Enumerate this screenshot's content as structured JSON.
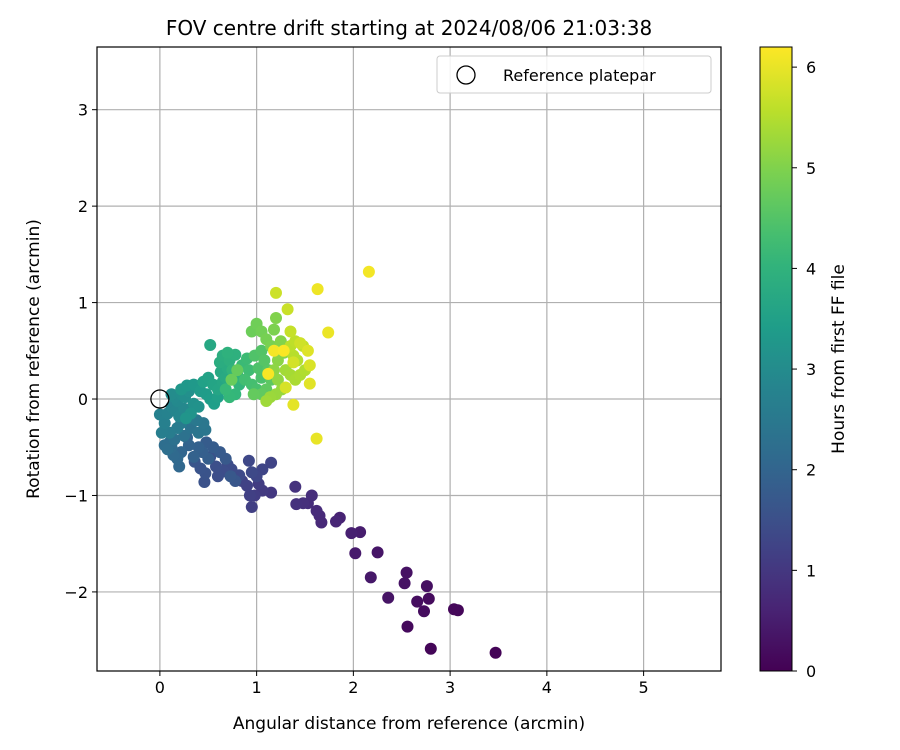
{
  "chart_data": {
    "type": "scatter",
    "title": "FOV centre drift starting at 2024/08/06 21:03:38",
    "xlabel": "Angular distance from reference (arcmin)",
    "ylabel": "Rotation from reference (arcmin)",
    "xlim": [
      -0.65,
      5.8
    ],
    "ylim": [
      -2.82,
      3.65
    ],
    "xticks": [
      0,
      1,
      2,
      3,
      4,
      5
    ],
    "yticks": [
      -2,
      -1,
      0,
      1,
      2,
      3
    ],
    "grid": true,
    "legend": {
      "position": "top-right",
      "entries": [
        "Reference platepar"
      ]
    },
    "reference": {
      "x": 0,
      "y": 0
    },
    "colorbar": {
      "label": "Hours from first FF file",
      "min": 0,
      "max": 6.2,
      "ticks": [
        0,
        1,
        2,
        3,
        4,
        5,
        6
      ],
      "colormap": "viridis"
    },
    "points": [
      [
        3.47,
        -2.63,
        0.05
      ],
      [
        2.8,
        -2.59,
        0.08
      ],
      [
        3.08,
        -2.19,
        0.1
      ],
      [
        3.04,
        -2.18,
        0.12
      ],
      [
        2.56,
        -2.36,
        0.15
      ],
      [
        2.78,
        -2.07,
        0.18
      ],
      [
        2.73,
        -2.2,
        0.2
      ],
      [
        2.66,
        -2.1,
        0.22
      ],
      [
        2.76,
        -1.94,
        0.25
      ],
      [
        2.55,
        -1.8,
        0.28
      ],
      [
        2.53,
        -1.91,
        0.3
      ],
      [
        2.36,
        -2.06,
        0.33
      ],
      [
        2.25,
        -1.59,
        0.36
      ],
      [
        2.18,
        -1.85,
        0.4
      ],
      [
        2.02,
        -1.6,
        0.45
      ],
      [
        2.07,
        -1.38,
        0.5
      ],
      [
        1.98,
        -1.39,
        0.55
      ],
      [
        1.86,
        -1.23,
        0.6
      ],
      [
        1.82,
        -1.27,
        0.65
      ],
      [
        1.67,
        -1.28,
        0.7
      ],
      [
        1.65,
        -1.21,
        0.72
      ],
      [
        1.62,
        -1.16,
        0.75
      ],
      [
        1.53,
        -1.08,
        0.8
      ],
      [
        1.57,
        -1.0,
        0.82
      ],
      [
        1.48,
        -1.08,
        0.85
      ],
      [
        1.41,
        -1.09,
        0.88
      ],
      [
        1.4,
        -0.91,
        0.9
      ],
      [
        1.15,
        -0.97,
        1.0
      ],
      [
        1.06,
        -0.95,
        1.05
      ],
      [
        1.02,
        -0.88,
        1.1
      ],
      [
        0.98,
        -1.0,
        1.12
      ],
      [
        0.95,
        -1.12,
        1.15
      ],
      [
        0.93,
        -1.0,
        1.18
      ],
      [
        0.9,
        -0.9,
        1.2
      ],
      [
        0.85,
        -0.85,
        1.22
      ],
      [
        1.15,
        -0.66,
        1.25
      ],
      [
        1.06,
        -0.73,
        1.28
      ],
      [
        1.0,
        -0.8,
        1.3
      ],
      [
        0.92,
        -0.64,
        1.33
      ],
      [
        0.95,
        -0.76,
        1.35
      ],
      [
        0.82,
        -0.79,
        1.38
      ],
      [
        0.74,
        -0.73,
        1.4
      ],
      [
        0.7,
        -0.68,
        1.42
      ],
      [
        0.66,
        -0.75,
        1.45
      ],
      [
        0.6,
        -0.8,
        1.48
      ],
      [
        0.58,
        -0.7,
        1.5
      ],
      [
        0.52,
        -0.6,
        1.53
      ],
      [
        0.46,
        -0.86,
        1.56
      ],
      [
        0.47,
        -0.77,
        1.58
      ],
      [
        0.42,
        -0.72,
        1.6
      ],
      [
        0.36,
        -0.65,
        1.63
      ],
      [
        0.78,
        -0.85,
        1.66
      ],
      [
        0.73,
        -0.8,
        1.7
      ],
      [
        0.68,
        -0.62,
        1.72
      ],
      [
        0.62,
        -0.55,
        1.75
      ],
      [
        0.55,
        -0.5,
        1.78
      ],
      [
        0.48,
        -0.45,
        1.8
      ],
      [
        0.5,
        -0.62,
        1.83
      ],
      [
        0.44,
        -0.55,
        1.86
      ],
      [
        0.4,
        -0.5,
        1.9
      ],
      [
        0.35,
        -0.6,
        1.93
      ],
      [
        0.3,
        -0.48,
        1.96
      ],
      [
        0.28,
        -0.4,
        2.0
      ],
      [
        0.22,
        -0.55,
        2.03
      ],
      [
        0.2,
        -0.7,
        2.06
      ],
      [
        0.18,
        -0.62,
        2.1
      ],
      [
        0.14,
        -0.58,
        2.13
      ],
      [
        0.12,
        -0.5,
        2.16
      ],
      [
        0.1,
        -0.45,
        2.2
      ],
      [
        0.05,
        -0.48,
        2.23
      ],
      [
        0.08,
        -0.52,
        2.26
      ],
      [
        0.15,
        -0.42,
        2.3
      ],
      [
        0.25,
        -0.38,
        2.33
      ],
      [
        0.32,
        -0.3,
        2.36
      ],
      [
        0.4,
        -0.35,
        2.4
      ],
      [
        0.47,
        -0.32,
        2.43
      ],
      [
        0.45,
        -0.25,
        2.46
      ],
      [
        0.38,
        -0.22,
        2.5
      ],
      [
        0.3,
        -0.2,
        2.53
      ],
      [
        0.22,
        -0.25,
        2.56
      ],
      [
        0.18,
        -0.3,
        2.6
      ],
      [
        0.1,
        -0.35,
        2.63
      ],
      [
        0.02,
        -0.35,
        2.66
      ],
      [
        0.05,
        -0.25,
        2.7
      ],
      [
        0.0,
        -0.16,
        2.73
      ],
      [
        0.08,
        -0.15,
        2.76
      ],
      [
        0.12,
        -0.08,
        2.8
      ],
      [
        0.16,
        -0.12,
        2.83
      ],
      [
        0.2,
        -0.18,
        2.86
      ],
      [
        0.25,
        -0.1,
        2.9
      ],
      [
        0.18,
        -0.02,
        2.93
      ],
      [
        0.15,
        0.02,
        2.96
      ],
      [
        0.12,
        0.05,
        3.0
      ],
      [
        0.22,
        0.05,
        3.03
      ],
      [
        0.26,
        0.02,
        3.06
      ],
      [
        0.3,
        0.08,
        3.1
      ],
      [
        0.35,
        -0.05,
        3.13
      ],
      [
        0.4,
        -0.08,
        3.16
      ],
      [
        0.32,
        -0.15,
        3.2
      ],
      [
        0.27,
        -0.2,
        3.23
      ],
      [
        0.22,
        0.1,
        3.26
      ],
      [
        0.28,
        0.14,
        3.3
      ],
      [
        0.35,
        0.15,
        3.33
      ],
      [
        0.42,
        0.08,
        3.36
      ],
      [
        0.48,
        0.05,
        3.4
      ],
      [
        0.52,
        0.0,
        3.43
      ],
      [
        0.56,
        -0.05,
        3.46
      ],
      [
        0.6,
        0.02,
        3.5
      ],
      [
        0.45,
        0.18,
        3.53
      ],
      [
        0.5,
        0.22,
        3.56
      ],
      [
        0.55,
        0.15,
        3.6
      ],
      [
        0.6,
        0.1,
        3.63
      ],
      [
        0.65,
        0.18,
        3.66
      ],
      [
        0.52,
        0.56,
        3.7
      ],
      [
        0.63,
        0.28,
        3.73
      ],
      [
        0.68,
        0.22,
        3.76
      ],
      [
        0.7,
        0.32,
        3.8
      ],
      [
        0.62,
        0.38,
        3.83
      ],
      [
        0.65,
        0.45,
        3.86
      ],
      [
        0.72,
        0.4,
        3.9
      ],
      [
        0.78,
        0.46,
        3.93
      ],
      [
        0.7,
        0.48,
        3.96
      ],
      [
        0.75,
        0.3,
        4.0
      ],
      [
        0.8,
        0.25,
        4.03
      ],
      [
        0.82,
        0.15,
        4.06
      ],
      [
        0.78,
        0.05,
        4.1
      ],
      [
        0.72,
        0.02,
        4.13
      ],
      [
        0.68,
        0.1,
        4.16
      ],
      [
        0.85,
        0.35,
        4.2
      ],
      [
        0.9,
        0.42,
        4.23
      ],
      [
        0.92,
        0.3,
        4.26
      ],
      [
        0.88,
        0.2,
        4.3
      ],
      [
        0.95,
        0.15,
        4.33
      ],
      [
        1.0,
        0.1,
        4.36
      ],
      [
        1.05,
        0.22,
        4.4
      ],
      [
        1.02,
        0.32,
        4.43
      ],
      [
        0.98,
        0.45,
        4.46
      ],
      [
        1.05,
        0.5,
        4.5
      ],
      [
        1.08,
        0.4,
        4.53
      ],
      [
        1.12,
        0.3,
        4.56
      ],
      [
        1.15,
        0.2,
        4.6
      ],
      [
        1.1,
        0.1,
        4.63
      ],
      [
        1.05,
        0.05,
        4.66
      ],
      [
        0.97,
        0.05,
        4.7
      ],
      [
        0.8,
        0.3,
        4.73
      ],
      [
        0.74,
        0.2,
        4.76
      ],
      [
        0.95,
        0.7,
        4.8
      ],
      [
        1.0,
        0.78,
        4.83
      ],
      [
        1.05,
        0.7,
        4.86
      ],
      [
        1.1,
        0.62,
        4.9
      ],
      [
        1.15,
        0.55,
        4.93
      ],
      [
        1.18,
        0.72,
        4.96
      ],
      [
        1.2,
        0.84,
        5.0
      ],
      [
        1.25,
        0.6,
        5.03
      ],
      [
        1.28,
        0.48,
        5.06
      ],
      [
        1.22,
        0.4,
        5.1
      ],
      [
        1.18,
        0.3,
        5.13
      ],
      [
        1.22,
        0.2,
        5.16
      ],
      [
        1.26,
        0.1,
        5.2
      ],
      [
        1.2,
        0.05,
        5.23
      ],
      [
        1.14,
        0.02,
        5.26
      ],
      [
        1.1,
        -0.02,
        5.3
      ],
      [
        1.3,
        0.3,
        5.33
      ],
      [
        1.35,
        0.25,
        5.36
      ],
      [
        1.4,
        0.2,
        5.4
      ],
      [
        1.45,
        0.25,
        5.43
      ],
      [
        1.5,
        0.3,
        5.46
      ],
      [
        1.42,
        0.4,
        5.5
      ],
      [
        1.38,
        0.45,
        5.53
      ],
      [
        1.35,
        0.55,
        5.56
      ],
      [
        1.4,
        0.6,
        5.6
      ],
      [
        1.48,
        0.55,
        5.63
      ],
      [
        1.35,
        0.7,
        5.66
      ],
      [
        1.32,
        0.93,
        5.7
      ],
      [
        1.2,
        1.1,
        5.73
      ],
      [
        1.45,
        0.58,
        5.76
      ],
      [
        1.38,
        0.38,
        5.8
      ],
      [
        1.3,
        0.12,
        5.83
      ],
      [
        1.55,
        0.35,
        5.86
      ],
      [
        1.53,
        0.5,
        5.9
      ],
      [
        1.55,
        0.16,
        5.93
      ],
      [
        1.38,
        -0.06,
        5.96
      ],
      [
        1.62,
        -0.41,
        6.0
      ],
      [
        1.74,
        0.69,
        6.03
      ],
      [
        1.63,
        1.14,
        6.06
      ],
      [
        2.16,
        1.32,
        6.1
      ],
      [
        1.18,
        0.5,
        6.12
      ],
      [
        1.12,
        0.26,
        6.15
      ],
      [
        1.28,
        0.5,
        6.18
      ]
    ]
  }
}
